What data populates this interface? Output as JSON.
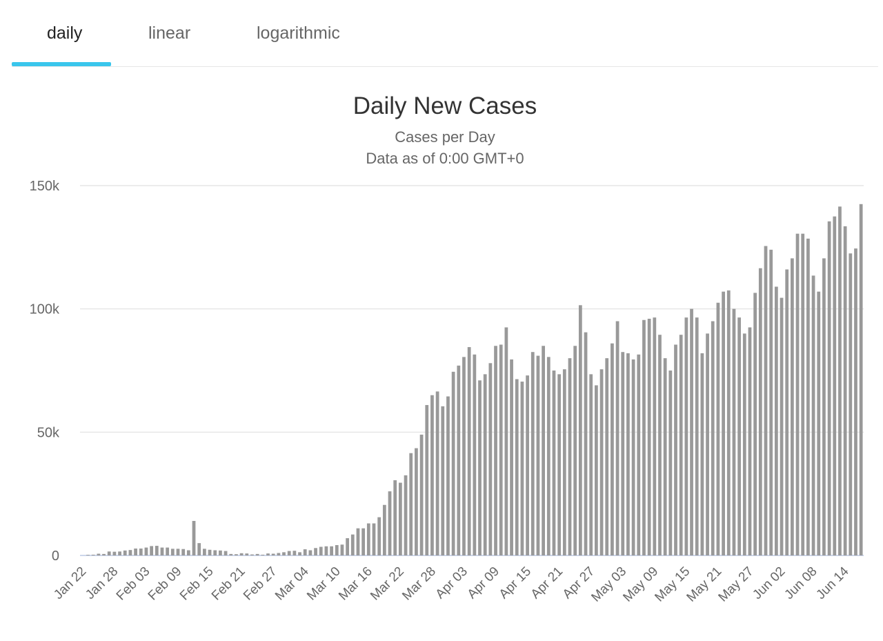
{
  "tabs": [
    {
      "label": "daily",
      "active": true
    },
    {
      "label": "linear",
      "active": false
    },
    {
      "label": "logarithmic",
      "active": false
    }
  ],
  "colors": {
    "accent": "#39c6ec",
    "bar": "#999999",
    "grid": "#e6e6e6"
  },
  "chart_data": {
    "type": "bar",
    "title": "Daily New Cases",
    "subtitle": [
      "Cases per Day",
      "Data as of 0:00 GMT+0"
    ],
    "ylim": [
      0,
      150000
    ],
    "yticks": [
      0,
      50000,
      100000,
      150000
    ],
    "ytick_labels": [
      "0",
      "50k",
      "100k",
      "150k"
    ],
    "xtick_labels": [
      "Jan 22",
      "Jan 28",
      "Feb 03",
      "Feb 09",
      "Feb 15",
      "Feb 21",
      "Feb 27",
      "Mar 04",
      "Mar 10",
      "Mar 16",
      "Mar 22",
      "Mar 28",
      "Apr 03",
      "Apr 09",
      "Apr 15",
      "Apr 21",
      "Apr 27",
      "May 03",
      "May 09",
      "May 15",
      "May 21",
      "May 27",
      "Jun 02",
      "Jun 08",
      "Jun 14"
    ],
    "xtick_every": 6,
    "legend": false,
    "grid": true,
    "values": [
      0,
      250,
      300,
      700,
      600,
      1600,
      1500,
      1600,
      2000,
      2200,
      2800,
      2800,
      3200,
      3800,
      3900,
      3200,
      3200,
      2700,
      2700,
      2600,
      2100,
      14000,
      5000,
      2700,
      2300,
      2100,
      2000,
      1800,
      600,
      500,
      900,
      800,
      400,
      600,
      300,
      800,
      700,
      1000,
      1300,
      1800,
      1900,
      1300,
      2500,
      2100,
      3000,
      3500,
      3700,
      3700,
      4200,
      4400,
      7000,
      8500,
      11000,
      11000,
      13000,
      13000,
      15500,
      20500,
      26000,
      30500,
      29500,
      32500,
      41500,
      43500,
      49000,
      61000,
      65000,
      66500,
      60500,
      64500,
      74500,
      77000,
      80500,
      84500,
      81500,
      71000,
      73500,
      78000,
      85000,
      85500,
      92500,
      79500,
      71500,
      70500,
      73000,
      82500,
      81000,
      85000,
      80500,
      75000,
      73500,
      75500,
      80000,
      85000,
      101500,
      90500,
      73500,
      69000,
      75500,
      80000,
      86000,
      95000,
      82500,
      82000,
      79500,
      81500,
      95500,
      96000,
      96500,
      89500,
      80000,
      75000,
      85500,
      89500,
      96500,
      100000,
      96500,
      82000,
      90000,
      95000,
      102500,
      107000,
      107500,
      100000,
      96500,
      90000,
      92500,
      106500,
      116500,
      125500,
      124000,
      109000,
      104500,
      116000,
      120500,
      130500,
      130500,
      128500,
      113500,
      107000,
      120500,
      135500,
      137500,
      141500,
      133500,
      122500,
      124500,
      142500
    ]
  }
}
